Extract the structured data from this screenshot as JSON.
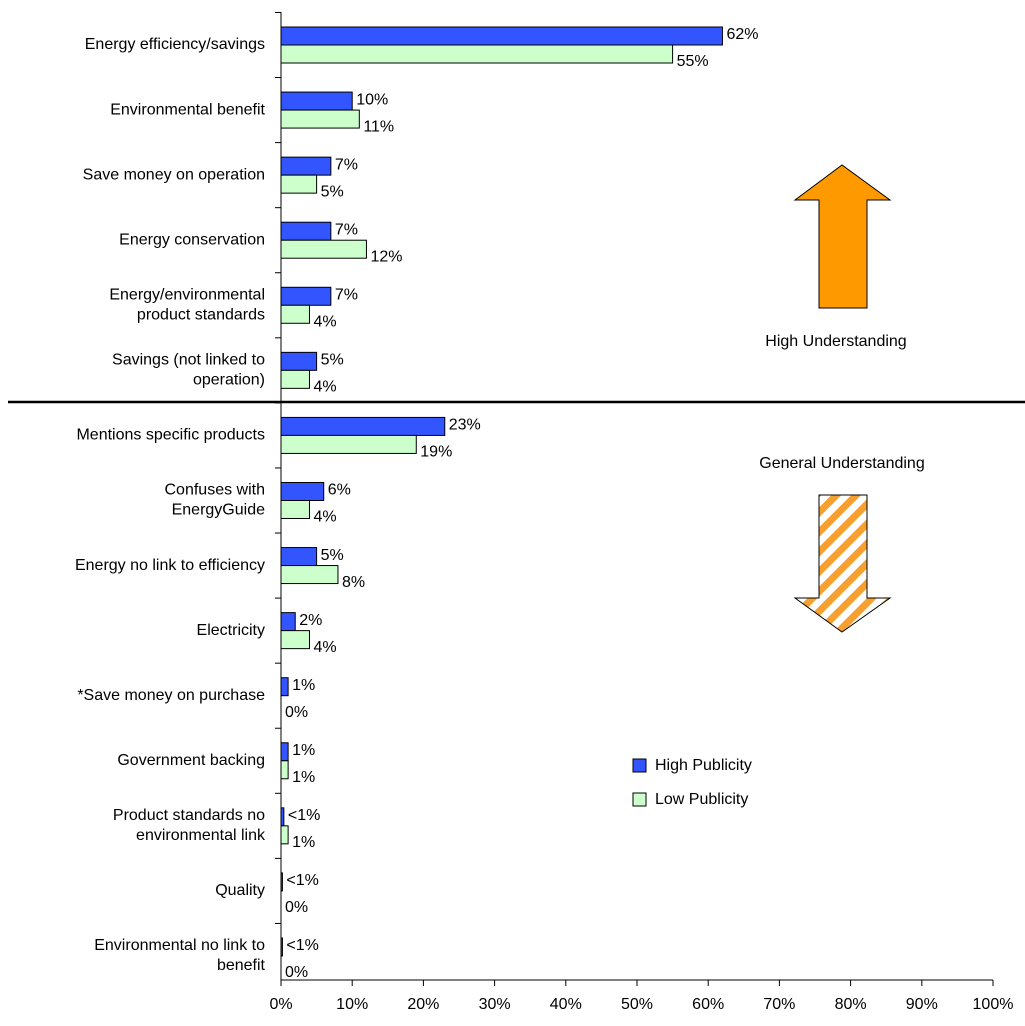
{
  "chart_data": {
    "type": "bar",
    "orientation": "horizontal",
    "categories": [
      "Energy efficiency/savings",
      "Environmental benefit",
      "Save money on operation",
      "Energy conservation",
      "Energy/environmental\nproduct standards",
      "Savings (not linked to\noperation)",
      "Mentions specific products",
      "Confuses with\nEnergyGuide",
      "Energy no link to efficiency",
      "Electricity",
      "*Save money on purchase",
      "Government backing",
      "Product standards no\nenvironmental link",
      "Quality",
      "Environmental no link to\nbenefit"
    ],
    "series": [
      {
        "name": "High Publicity",
        "color": "#3355ff",
        "values": [
          62,
          10,
          7,
          7,
          7,
          5,
          23,
          6,
          5,
          2,
          1,
          1,
          0.4,
          0.2,
          0.2
        ],
        "value_labels": [
          "62%",
          "10%",
          "7%",
          "7%",
          "7%",
          "5%",
          "23%",
          "6%",
          "5%",
          "2%",
          "1%",
          "1%",
          "<1%",
          "<1%",
          "<1%"
        ]
      },
      {
        "name": "Low Publicity",
        "color": "#ccffcc",
        "values": [
          55,
          11,
          5,
          12,
          4,
          4,
          19,
          4,
          8,
          4,
          0,
          1,
          1,
          0,
          0
        ],
        "value_labels": [
          "55%",
          "11%",
          "5%",
          "12%",
          "4%",
          "4%",
          "19%",
          "4%",
          "8%",
          "4%",
          "0%",
          "1%",
          "1%",
          "0%",
          "0%"
        ]
      }
    ],
    "xlim": [
      0,
      100
    ],
    "xticks": [
      {
        "value": 0,
        "label": "0%"
      },
      {
        "value": 10,
        "label": "10%"
      },
      {
        "value": 20,
        "label": "20%"
      },
      {
        "value": 30,
        "label": "30%"
      },
      {
        "value": 40,
        "label": "40%"
      },
      {
        "value": 50,
        "label": "50%"
      },
      {
        "value": 60,
        "label": "60%"
      },
      {
        "value": 70,
        "label": "70%"
      },
      {
        "value": 80,
        "label": "80%"
      },
      {
        "value": 90,
        "label": "90%"
      },
      {
        "value": 100,
        "label": "100%"
      }
    ],
    "annotations": [
      "High Understanding",
      "General Understanding"
    ],
    "legend": "right"
  }
}
